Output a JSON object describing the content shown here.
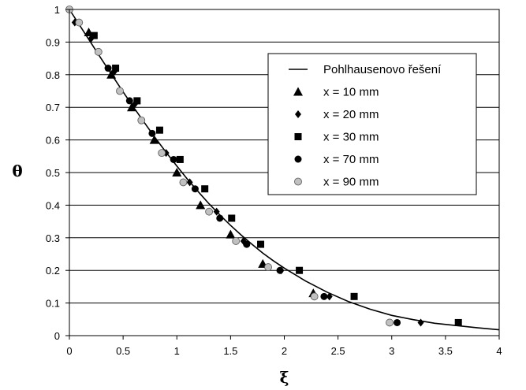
{
  "chart_data": {
    "type": "scatter",
    "title": "",
    "xlabel": "ξ",
    "ylabel": "θ",
    "xlim": [
      0,
      4
    ],
    "ylim": [
      0,
      1
    ],
    "xticks": [
      "0",
      "0.5",
      "1",
      "1.5",
      "2",
      "2.5",
      "3",
      "3.5",
      "4"
    ],
    "yticks": [
      "0",
      "0.1",
      "0.2",
      "0.3",
      "0.4",
      "0.5",
      "0.6",
      "0.7",
      "0.8",
      "0.9",
      "1"
    ],
    "grid": "horizontal",
    "legend_position": "top-right",
    "curve": {
      "name": "Pohlhausenovo řešení",
      "x": [
        0,
        0.1,
        0.2,
        0.3,
        0.4,
        0.5,
        0.6,
        0.7,
        0.8,
        0.9,
        1.0,
        1.1,
        1.2,
        1.3,
        1.4,
        1.5,
        1.6,
        1.7,
        1.8,
        1.9,
        2.0,
        2.2,
        2.4,
        2.6,
        2.8,
        3.0,
        3.2,
        3.4,
        3.6,
        3.8,
        4.0
      ],
      "y": [
        1.0,
        0.949,
        0.898,
        0.847,
        0.797,
        0.747,
        0.699,
        0.652,
        0.606,
        0.562,
        0.52,
        0.479,
        0.441,
        0.404,
        0.37,
        0.338,
        0.308,
        0.28,
        0.253,
        0.229,
        0.207,
        0.167,
        0.133,
        0.104,
        0.081,
        0.062,
        0.049,
        0.038,
        0.031,
        0.024,
        0.018
      ]
    },
    "series": [
      {
        "name": "x = 10 mm",
        "marker": "triangle",
        "x": [
          0.18,
          0.39,
          0.58,
          0.79,
          1.0,
          1.22,
          1.5,
          1.8,
          2.27
        ],
        "y": [
          0.93,
          0.8,
          0.7,
          0.6,
          0.5,
          0.4,
          0.31,
          0.22,
          0.13
        ]
      },
      {
        "name": "x = 20 mm",
        "marker": "diamond",
        "x": [
          0.05,
          0.2,
          0.42,
          0.61,
          0.9,
          1.12,
          1.37,
          1.62,
          1.97,
          2.42,
          3.27
        ],
        "y": [
          0.96,
          0.91,
          0.81,
          0.71,
          0.56,
          0.47,
          0.38,
          0.29,
          0.2,
          0.12,
          0.04
        ]
      },
      {
        "name": "x = 30 mm",
        "marker": "square",
        "x": [
          0.23,
          0.43,
          0.63,
          0.84,
          1.03,
          1.26,
          1.51,
          1.78,
          2.14,
          2.65,
          3.62
        ],
        "y": [
          0.92,
          0.82,
          0.72,
          0.63,
          0.54,
          0.45,
          0.36,
          0.28,
          0.2,
          0.12,
          0.04
        ]
      },
      {
        "name": "x = 70 mm",
        "marker": "circle",
        "x": [
          0.36,
          0.56,
          0.77,
          0.97,
          1.17,
          1.4,
          1.65,
          1.96,
          2.37,
          3.05
        ],
        "y": [
          0.82,
          0.72,
          0.62,
          0.54,
          0.45,
          0.36,
          0.28,
          0.2,
          0.12,
          0.04
        ]
      },
      {
        "name": "x = 90 mm",
        "marker": "circle-gray",
        "x": [
          0.0,
          0.09,
          0.27,
          0.47,
          0.67,
          0.86,
          1.06,
          1.3,
          1.55,
          1.85,
          2.28,
          2.98
        ],
        "y": [
          1.0,
          0.96,
          0.87,
          0.75,
          0.66,
          0.56,
          0.47,
          0.38,
          0.29,
          0.21,
          0.12,
          0.04
        ]
      }
    ],
    "colors": {
      "marker_dark": "#000000",
      "marker_gray": "#c0c0c0",
      "grid": "#000000"
    }
  }
}
